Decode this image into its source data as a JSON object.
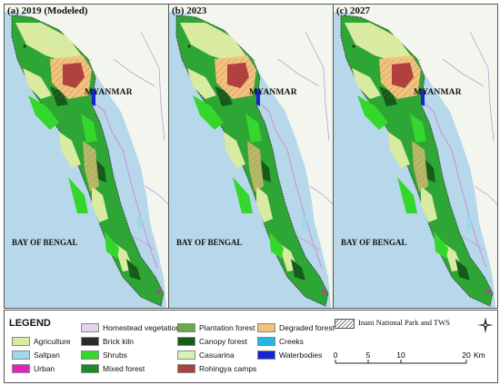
{
  "panels": [
    {
      "title": "(a) 2019 (Modeled)"
    },
    {
      "title": "(b) 2023"
    },
    {
      "title": "(c) 2027"
    }
  ],
  "map_labels": {
    "country": "MYANMAR",
    "sea": "BAY OF BENGAL"
  },
  "legend": {
    "title": "LEGEND",
    "items": [
      {
        "label": "Agriculture",
        "color": "#d9eba0"
      },
      {
        "label": "Saltpan",
        "color": "#9fd8ee"
      },
      {
        "label": "Urban",
        "color": "#e41fbf"
      },
      {
        "label": "Homestead vegetation",
        "color": "#e3d4ec"
      },
      {
        "label": "Brick kiln",
        "color": "#2b2b2b"
      },
      {
        "label": "Shrubs",
        "color": "#34d82c"
      },
      {
        "label": "Mixed forest",
        "color": "#1d8a2a"
      },
      {
        "label": "Plantation forest",
        "color": "#6ba84a"
      },
      {
        "label": "Canopy forest",
        "color": "#155c1a"
      },
      {
        "label": "Casuarina",
        "color": "#d6f2b6"
      },
      {
        "label": "Rohingya camps",
        "color": "#b0413e"
      },
      {
        "label": "Degraded forest",
        "color": "#f3c27c"
      },
      {
        "label": "Creeks",
        "color": "#22b7e8"
      },
      {
        "label": "Waterbodies",
        "color": "#1524d6"
      }
    ],
    "protected_area": "Inani National Park and TWS"
  },
  "scale_bar": {
    "ticks": [
      "0",
      "5",
      "10",
      "20"
    ],
    "unit": "Km"
  },
  "colors": {
    "sea": "#b7d8ea",
    "land": "#f3f6ee",
    "border": "#c79ad6"
  }
}
